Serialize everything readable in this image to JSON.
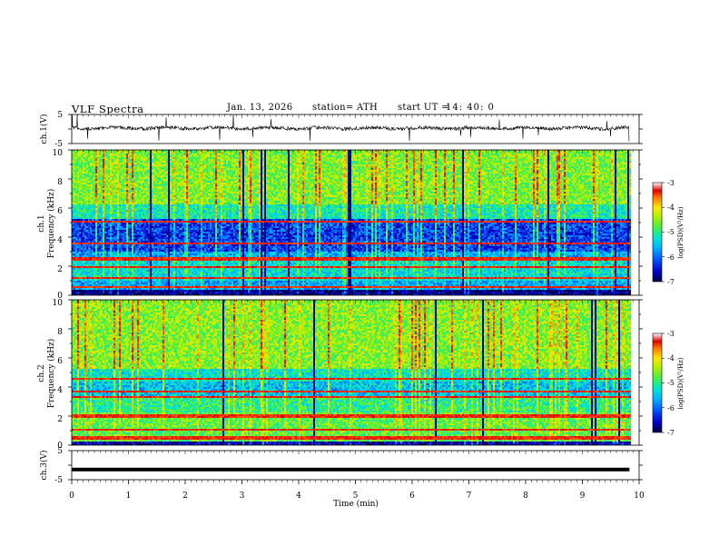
{
  "header": {
    "title": "VLF  Spectra",
    "date": "Jan. 13, 2026",
    "station": "station= ATH",
    "start_label": "start  UT  =",
    "start_time": "14: 40: 0"
  },
  "colors": {
    "spectrogram_scale": [
      "#000040",
      "#0000c8",
      "#0050ff",
      "#00b4ff",
      "#00e6d2",
      "#46f046",
      "#b4f000",
      "#ffe600",
      "#ff7800",
      "#e00000",
      "#ffffff"
    ]
  },
  "chart_data": [
    {
      "type": "line",
      "panel": "ch1-voltage",
      "ylabel": "ch.1(V)",
      "ylim": [
        -5,
        5
      ],
      "yticks": [
        "5",
        "-5"
      ],
      "xlim": [
        0,
        10
      ],
      "description_values": {
        "baseline_V": 0.3,
        "noise_amplitude_V": 0.6,
        "end_time_min": 9.83
      }
    },
    {
      "type": "heatmap",
      "panel": "ch1-spectrogram",
      "ylabel": "ch.1\nFrequency (kHz)",
      "ylabel_lines": [
        "ch.1",
        "Frequency  (kHz)"
      ],
      "ylim": [
        0,
        10
      ],
      "yticks": [
        "0",
        "2",
        "4",
        "6",
        "8",
        "10"
      ],
      "xlim": [
        0,
        10
      ],
      "colorbar": {
        "label": "log(PSD)(V²/Hz)",
        "range": [
          -7,
          -3
        ],
        "ticks": [
          "-3",
          "-4",
          "-5",
          "-6",
          "-7"
        ]
      }
    },
    {
      "type": "heatmap",
      "panel": "ch2-spectrogram",
      "ylabel": "ch.2\nFrequency (kHz)",
      "ylabel_lines": [
        "ch.2",
        "Frequency  (kHz)"
      ],
      "ylim": [
        0,
        10
      ],
      "yticks": [
        "0",
        "2",
        "4",
        "6",
        "8",
        "10"
      ],
      "xlim": [
        0,
        10
      ],
      "colorbar": {
        "label": "log(PSD)(V²/Hz)",
        "range": [
          -7,
          -3
        ],
        "ticks": [
          "-3",
          "-4",
          "-5",
          "-6",
          "-7"
        ]
      }
    },
    {
      "type": "line",
      "panel": "ch3-voltage",
      "ylabel": "ch.3(V)",
      "ylim": [
        -5,
        5
      ],
      "yticks": [
        "5",
        "-5"
      ],
      "xlim": [
        0,
        10
      ],
      "description_values": {
        "baseline_V": -1.5,
        "end_time_min": 9.83
      }
    }
  ],
  "xaxis": {
    "label": "Time  (min)",
    "ticks": [
      "0",
      "1",
      "2",
      "3",
      "4",
      "5",
      "6",
      "7",
      "8",
      "9",
      "10"
    ],
    "range": [
      0,
      10
    ]
  }
}
